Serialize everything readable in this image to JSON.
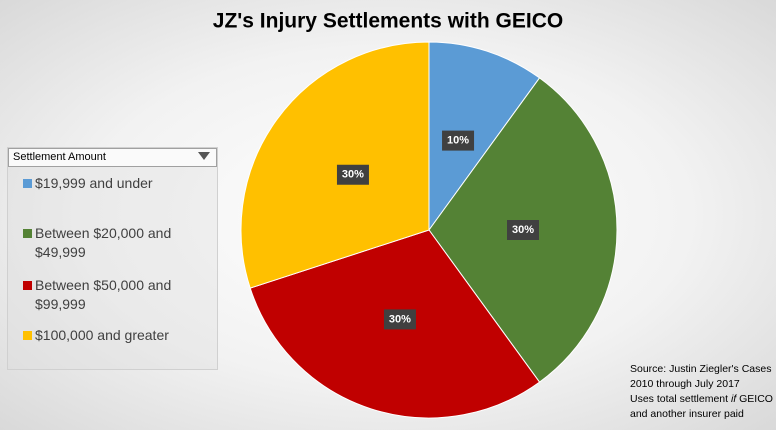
{
  "chart_data": {
    "type": "pie",
    "title": "JZ's Injury Settlements with GEICO",
    "categories": [
      "$19,999 and under",
      "Between $20,000 and $49,999",
      "Between $50,000 and $99,999",
      "$100,000 and greater"
    ],
    "values": [
      10,
      30,
      30,
      30
    ],
    "value_labels": [
      "10%",
      "30%",
      "30%",
      "30%"
    ],
    "colors": [
      "#5b9bd5",
      "#548235",
      "#c00000",
      "#ffc000"
    ],
    "legend_title": "Settlement Amount",
    "legend": "left",
    "note": [
      "Source: Justin Ziegler's Cases",
      "2010 through July 2017",
      [
        "Uses total settlement ",
        "if",
        " GEICO"
      ],
      "and another insurer paid"
    ]
  }
}
